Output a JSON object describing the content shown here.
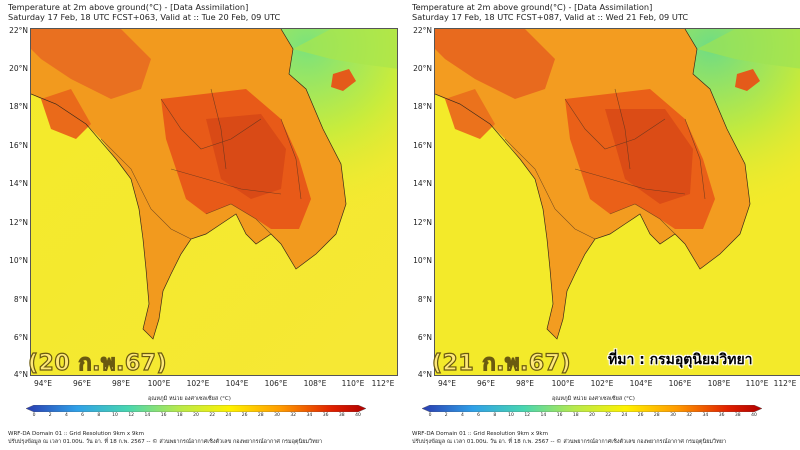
{
  "panels": [
    {
      "title_line1": "Temperature at 2m above ground(°C) - [Data Assimilation]",
      "title_line2": "Saturday 17 Feb, 18 UTC FCST+063, Valid at :: Tue 20 Feb, 09 UTC",
      "date_badge": "(20 ก.พ.67)"
    },
    {
      "title_line1": "Temperature at 2m above ground(°C) - [Data Assimilation]",
      "title_line2": "Saturday 17 Feb, 18 UTC FCST+087, Valid at :: Wed 21 Feb, 09 UTC",
      "date_badge": "(21 ก.พ.67)"
    }
  ],
  "lat_labels": [
    "22°N",
    "20°N",
    "18°N",
    "16°N",
    "14°N",
    "12°N",
    "10°N",
    "8°N",
    "6°N",
    "4°N"
  ],
  "lon_labels": [
    "94°E",
    "96°E",
    "98°E",
    "100°E",
    "102°E",
    "104°E",
    "106°E",
    "108°E",
    "110°E",
    "112°E"
  ],
  "source_label": "ที่มา : กรมอุตุนิยมวิทยา",
  "colorbar": {
    "title": "อุณหภูมิ หน่วย องศาเซลเซียส (°C)",
    "ticks": [
      "0",
      "2",
      "4",
      "6",
      "8",
      "10",
      "12",
      "14",
      "16",
      "18",
      "20",
      "22",
      "24",
      "26",
      "28",
      "30",
      "32",
      "34",
      "36",
      "38",
      "40"
    ],
    "colors": [
      "#2a3cb0",
      "#2f6ad8",
      "#2fa0e8",
      "#35c8e0",
      "#48d6b0",
      "#7ee07a",
      "#b8ea4c",
      "#e8f030",
      "#fff200",
      "#ffd000",
      "#ff9a00",
      "#ff5a00",
      "#e02000",
      "#b00000"
    ]
  },
  "footer_left": [
    "WRF-DA Domain 01 :: Grid Resolution 9km x 9km",
    "ปรับปรุงข้อมูล ณ เวลา 01.00น. วัน อา. ที่ 18 ก.พ. 2567 -- © ส่วนพยากรณ์อากาศเชิงตัวเลข กองพยากรณ์อากาศ กรมอุตุนิยมวิทยา"
  ],
  "footer_right": [
    "WRF-DA Domain 01 :: Grid Resolution 9km x 9km",
    "ปรับปรุงข้อมูล ณ เวลา 01.00น. วัน อา. ที่ 18 ก.พ. 2567 -- © ส่วนพยากรณ์อากาศเชิงตัวเลข กองพยากรณ์อากาศ กรมอุตุนิยมวิทยา"
  ]
}
